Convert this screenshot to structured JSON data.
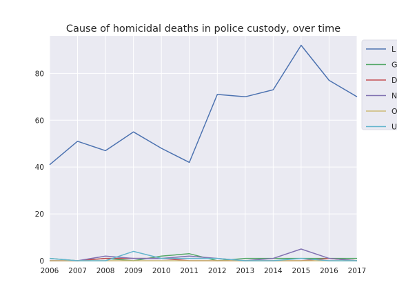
{
  "chart_data": {
    "type": "line",
    "title": "Cause of homicidal deaths in police custody, over time",
    "xlabel": "",
    "ylabel": "",
    "x": [
      2006,
      2007,
      2008,
      2009,
      2010,
      2011,
      2012,
      2013,
      2014,
      2015,
      2016,
      2017
    ],
    "xlim": [
      2006,
      2017
    ],
    "ylim": [
      0,
      96
    ],
    "yticks": [
      0,
      20,
      40,
      60,
      80
    ],
    "grid": true,
    "legend_position": "top-right",
    "series": [
      {
        "name": "L",
        "color": "#4c72b0",
        "values": [
          41,
          51,
          47,
          55,
          48,
          42,
          71,
          70,
          73,
          92,
          77,
          70
        ]
      },
      {
        "name": "G",
        "color": "#55a868",
        "values": [
          1,
          0,
          1,
          0,
          2,
          3,
          0,
          1,
          1,
          1,
          1,
          1
        ]
      },
      {
        "name": "D",
        "color": "#c44e52",
        "values": [
          0,
          0,
          1,
          1,
          1,
          0,
          0,
          0,
          0,
          0,
          1,
          0
        ]
      },
      {
        "name": "N",
        "color": "#8172b2",
        "values": [
          0,
          0,
          2,
          1,
          1,
          2,
          1,
          0,
          1,
          5,
          1,
          0
        ]
      },
      {
        "name": "O",
        "color": "#ccb974",
        "values": [
          0,
          0,
          0,
          0,
          0,
          0,
          0,
          0,
          0,
          0,
          0,
          0
        ]
      },
      {
        "name": "U",
        "color": "#64b5cd",
        "values": [
          1,
          0,
          0,
          4,
          1,
          1,
          1,
          0,
          0,
          1,
          0,
          0
        ]
      }
    ]
  }
}
